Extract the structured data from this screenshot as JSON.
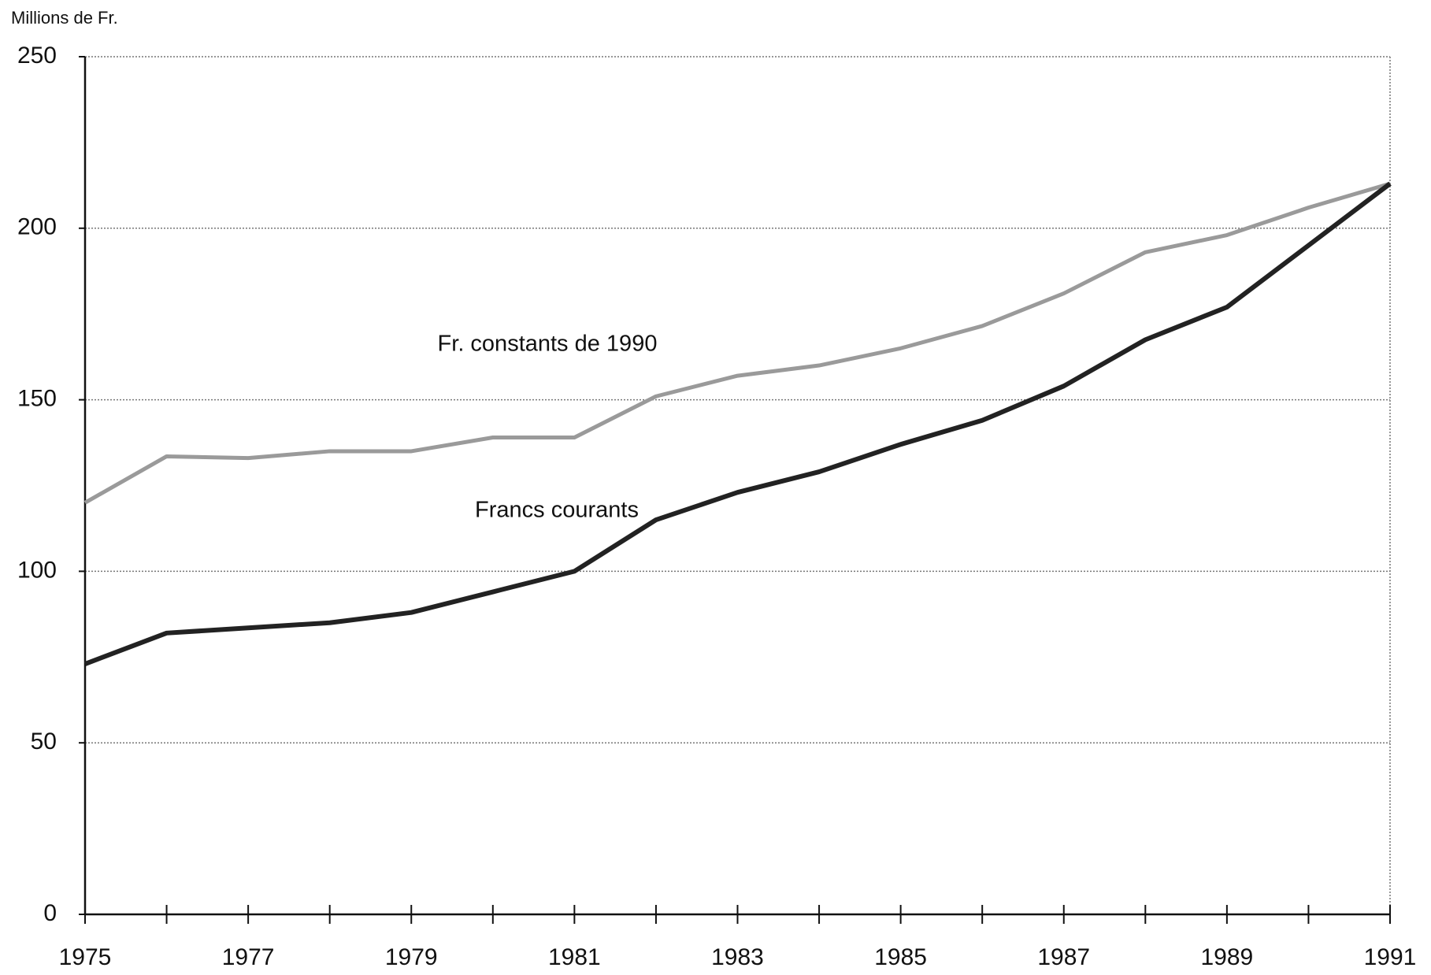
{
  "chart_data": {
    "type": "line",
    "y_axis_label": "Millions de Fr.",
    "x": [
      1975,
      1976,
      1977,
      1978,
      1979,
      1980,
      1981,
      1982,
      1983,
      1984,
      1985,
      1986,
      1987,
      1988,
      1989,
      1990,
      1991
    ],
    "series": [
      {
        "name": "Fr. constants de 1990",
        "color": "#9a9a9a",
        "values": [
          120,
          133.5,
          133,
          135,
          135,
          139,
          139,
          151,
          157,
          160,
          165,
          171.5,
          181,
          193,
          198,
          206,
          213
        ]
      },
      {
        "name": "Francs courants",
        "color": "#222222",
        "values": [
          73,
          82,
          83.5,
          85,
          88,
          94,
          100,
          115,
          123,
          129,
          137,
          144,
          154,
          167.5,
          177,
          195,
          213
        ]
      }
    ],
    "xlim": [
      1975,
      1991
    ],
    "xticks": [
      1975,
      1977,
      1979,
      1981,
      1983,
      1985,
      1987,
      1989,
      1991
    ],
    "xminorticks": [
      1975,
      1976,
      1977,
      1978,
      1979,
      1980,
      1981,
      1982,
      1983,
      1984,
      1985,
      1986,
      1987,
      1988,
      1989,
      1990,
      1991
    ],
    "ylim": [
      0,
      250
    ],
    "yticks": [
      0,
      50,
      100,
      150,
      200,
      250
    ],
    "grid": true
  }
}
